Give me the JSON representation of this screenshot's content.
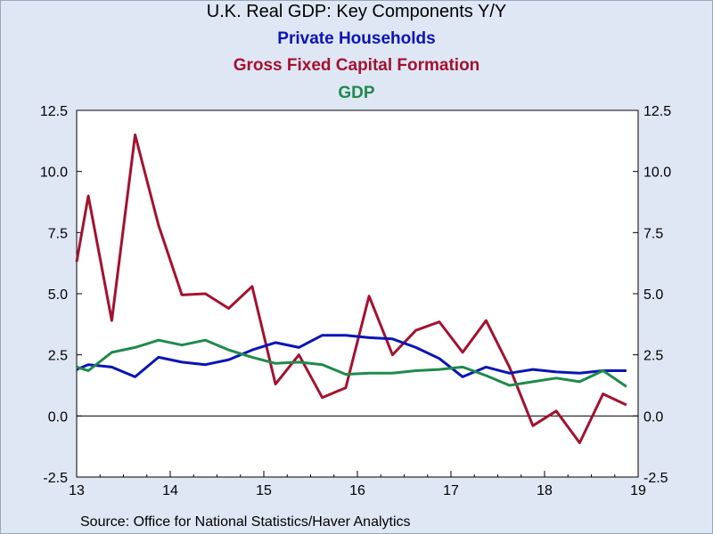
{
  "header": {
    "title": "U.K. Real GDP: Key Components Y/Y",
    "series_titles": [
      {
        "text": "Private Households",
        "color": "#0a14b4"
      },
      {
        "text": "Gross Fixed Capital Formation",
        "color": "#a3122f"
      },
      {
        "text": "GDP",
        "color": "#1f8a4c"
      }
    ]
  },
  "footer": {
    "source": "Source:  Office for National Statistics/Haver Analytics"
  },
  "chart_data": {
    "type": "line",
    "title": "U.K. Real GDP: Key Components Y/Y",
    "xlabel": "",
    "ylabel": "",
    "x_tick_labels": [
      "13",
      "14",
      "15",
      "16",
      "17",
      "18",
      "19"
    ],
    "y_tick_labels": [
      "12.5",
      "10.0",
      "7.5",
      "5.0",
      "2.5",
      "0.0",
      "-2.5"
    ],
    "ylim": [
      -2.5,
      12.5
    ],
    "xlim": [
      2013.0,
      2019.0
    ],
    "grid": false,
    "zero_line": true,
    "dual_y_axis": true,
    "series": [
      {
        "name": "Gross Fixed Capital Formation",
        "color": "#a3122f",
        "points": [
          [
            2013.0,
            6.3
          ],
          [
            2013.125,
            9.0
          ],
          [
            2013.375,
            3.9
          ],
          [
            2013.625,
            11.5
          ],
          [
            2013.875,
            7.8
          ],
          [
            2014.125,
            4.95
          ],
          [
            2014.375,
            5.0
          ],
          [
            2014.625,
            4.4
          ],
          [
            2014.875,
            5.3
          ],
          [
            2015.125,
            1.3
          ],
          [
            2015.375,
            2.5
          ],
          [
            2015.625,
            0.75
          ],
          [
            2015.875,
            1.15
          ],
          [
            2016.125,
            4.9
          ],
          [
            2016.375,
            2.5
          ],
          [
            2016.625,
            3.5
          ],
          [
            2016.875,
            3.85
          ],
          [
            2017.125,
            2.6
          ],
          [
            2017.375,
            3.9
          ],
          [
            2017.625,
            2.0
          ],
          [
            2017.875,
            -0.4
          ],
          [
            2018.125,
            0.2
          ],
          [
            2018.375,
            -1.1
          ],
          [
            2018.625,
            0.9
          ],
          [
            2018.875,
            0.45
          ]
        ]
      },
      {
        "name": "Private Households",
        "color": "#0a14b4",
        "points": [
          [
            2013.0,
            1.9
          ],
          [
            2013.125,
            2.1
          ],
          [
            2013.375,
            2.0
          ],
          [
            2013.625,
            1.6
          ],
          [
            2013.875,
            2.4
          ],
          [
            2014.125,
            2.2
          ],
          [
            2014.375,
            2.1
          ],
          [
            2014.625,
            2.3
          ],
          [
            2014.875,
            2.7
          ],
          [
            2015.125,
            3.0
          ],
          [
            2015.375,
            2.8
          ],
          [
            2015.625,
            3.3
          ],
          [
            2015.875,
            3.3
          ],
          [
            2016.125,
            3.2
          ],
          [
            2016.375,
            3.15
          ],
          [
            2016.625,
            2.8
          ],
          [
            2016.875,
            2.35
          ],
          [
            2017.125,
            1.6
          ],
          [
            2017.375,
            2.0
          ],
          [
            2017.625,
            1.75
          ],
          [
            2017.875,
            1.9
          ],
          [
            2018.125,
            1.8
          ],
          [
            2018.375,
            1.75
          ],
          [
            2018.625,
            1.85
          ],
          [
            2018.875,
            1.85
          ]
        ]
      },
      {
        "name": "GDP",
        "color": "#1f8a4c",
        "points": [
          [
            2013.0,
            2.0
          ],
          [
            2013.125,
            1.85
          ],
          [
            2013.375,
            2.6
          ],
          [
            2013.625,
            2.8
          ],
          [
            2013.875,
            3.1
          ],
          [
            2014.125,
            2.9
          ],
          [
            2014.375,
            3.1
          ],
          [
            2014.625,
            2.7
          ],
          [
            2014.875,
            2.4
          ],
          [
            2015.125,
            2.15
          ],
          [
            2015.375,
            2.2
          ],
          [
            2015.625,
            2.1
          ],
          [
            2015.875,
            1.7
          ],
          [
            2016.125,
            1.75
          ],
          [
            2016.375,
            1.75
          ],
          [
            2016.625,
            1.85
          ],
          [
            2016.875,
            1.9
          ],
          [
            2017.125,
            2.0
          ],
          [
            2017.375,
            1.65
          ],
          [
            2017.625,
            1.25
          ],
          [
            2017.875,
            1.4
          ],
          [
            2018.125,
            1.55
          ],
          [
            2018.375,
            1.4
          ],
          [
            2018.625,
            1.85
          ],
          [
            2018.875,
            1.2
          ]
        ]
      }
    ]
  }
}
